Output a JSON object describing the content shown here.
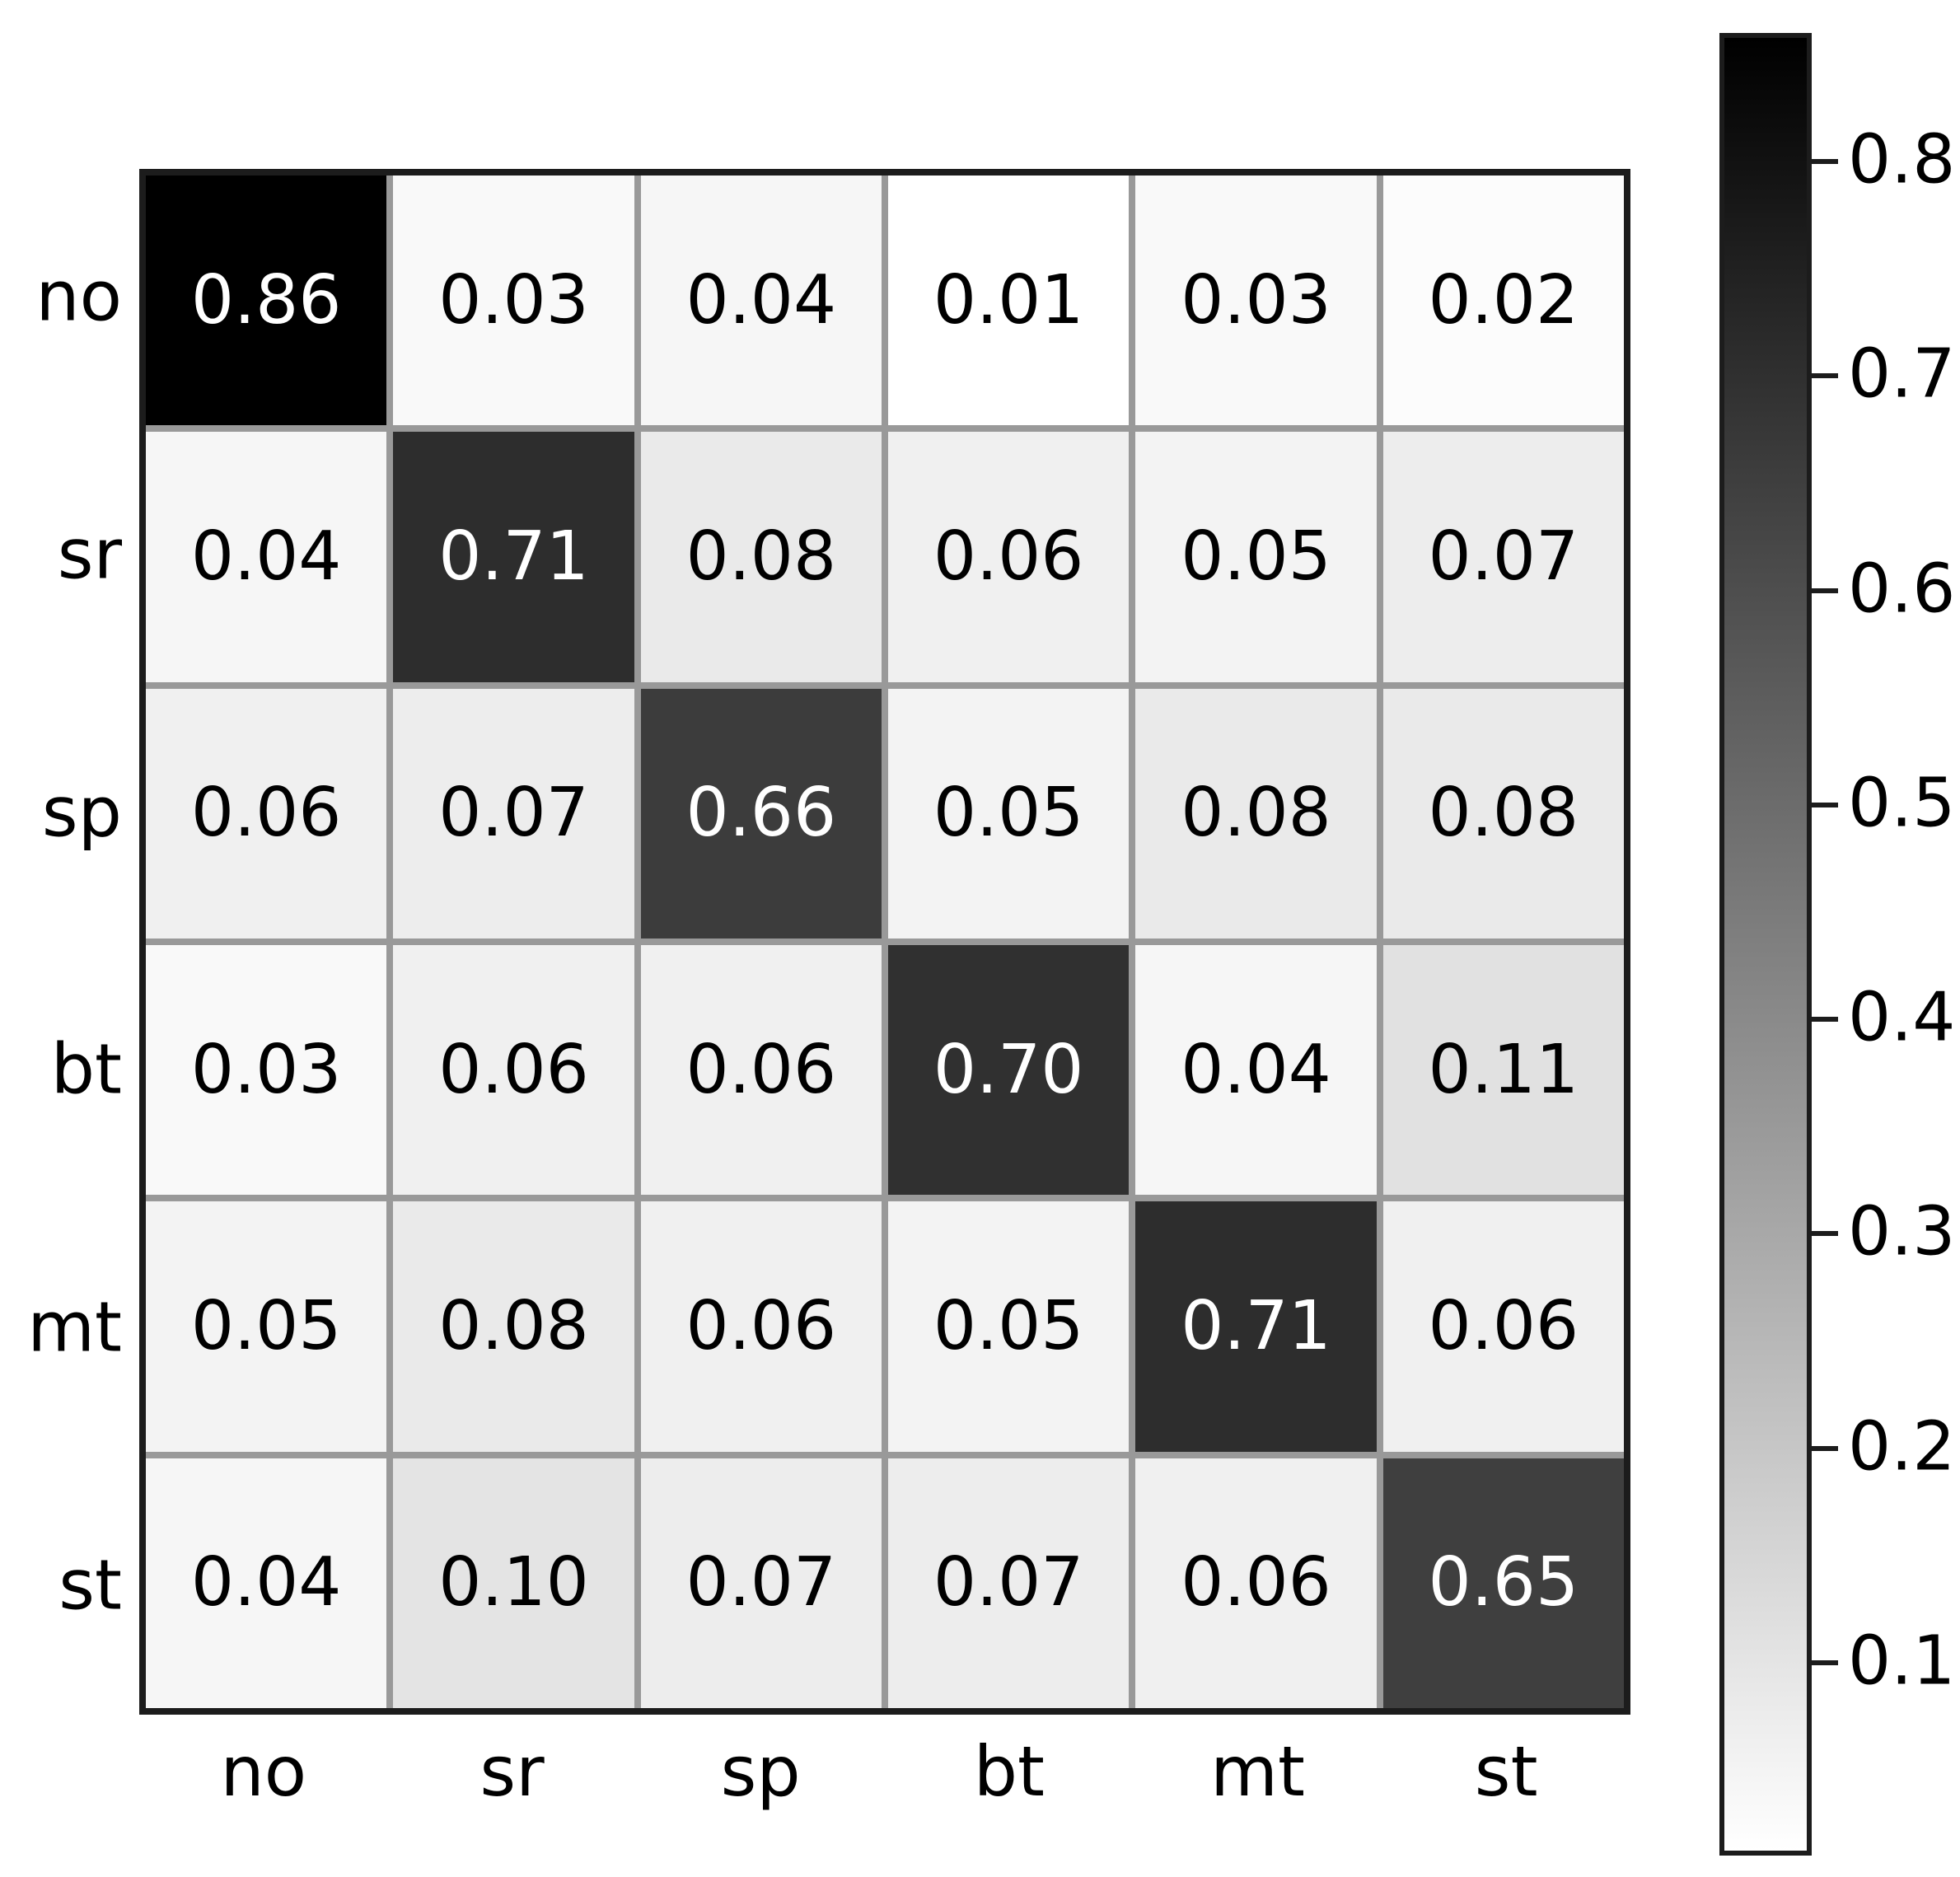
{
  "chart_data": {
    "type": "heatmap",
    "title": "",
    "xlabel": "",
    "ylabel": "",
    "row_labels": [
      "no",
      "sr",
      "sp",
      "bt",
      "mt",
      "st"
    ],
    "col_labels": [
      "no",
      "sr",
      "sp",
      "bt",
      "mt",
      "st"
    ],
    "matrix": [
      [
        0.86,
        0.03,
        0.04,
        0.01,
        0.03,
        0.02
      ],
      [
        0.04,
        0.71,
        0.08,
        0.06,
        0.05,
        0.07
      ],
      [
        0.06,
        0.07,
        0.66,
        0.05,
        0.08,
        0.08
      ],
      [
        0.03,
        0.06,
        0.06,
        0.7,
        0.04,
        0.11
      ],
      [
        0.05,
        0.08,
        0.06,
        0.05,
        0.71,
        0.06
      ],
      [
        0.04,
        0.1,
        0.07,
        0.07,
        0.06,
        0.65
      ]
    ],
    "cell_value_decimals": 2,
    "colormap": {
      "style": "linear-grayscale",
      "low_value_color": "#ffffff",
      "high_value_color": "#000000",
      "vmin": 0.01,
      "vmax": 0.86
    },
    "grid_line_color": "#999999",
    "spine_color": "#1c1c1c",
    "cell_text_dark": "#000000",
    "cell_text_light": "#ffffff",
    "colorbar": {
      "position": "right",
      "ticks": [
        0.8,
        0.7,
        0.6,
        0.5,
        0.4,
        0.3,
        0.2,
        0.1
      ],
      "tick_label_format_decimals": 1
    },
    "legend": null,
    "grid": false
  }
}
